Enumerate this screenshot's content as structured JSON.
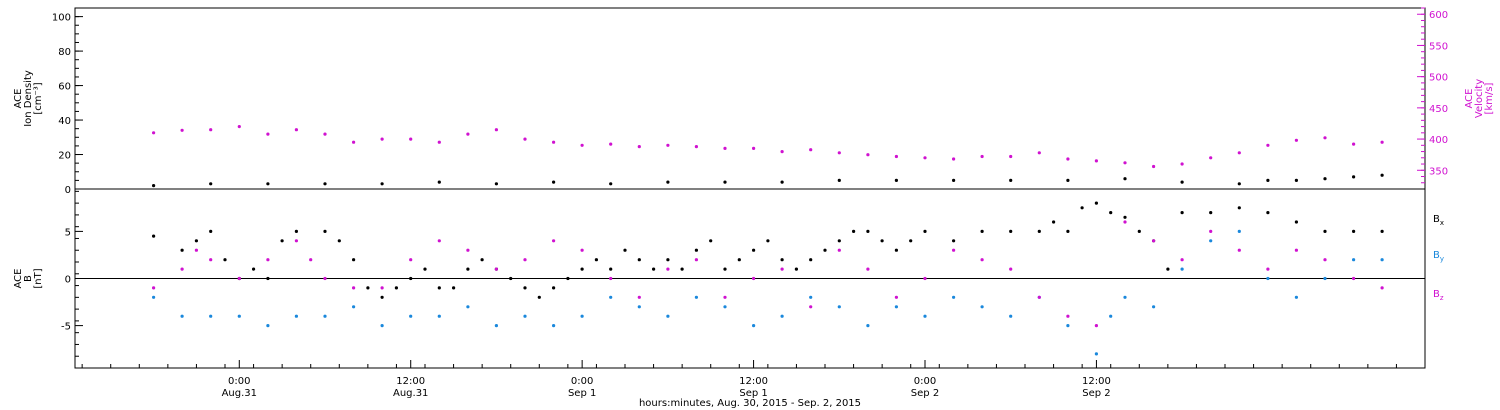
{
  "chart_data": [
    {
      "type": "scatter",
      "y_axis": {
        "label_lines": [
          "ACE",
          "Ion Density",
          "[cm⁻³]"
        ],
        "ylim": [
          0,
          105
        ],
        "ticks": [
          0,
          20,
          40,
          60,
          80,
          100
        ]
      },
      "y_axis_right": {
        "label_lines": [
          "ACE",
          "Velocity",
          "[km/s]"
        ],
        "ylim": [
          320,
          610
        ],
        "ticks": [
          350,
          400,
          450,
          500,
          550,
          600
        ],
        "color": "#d012d0"
      },
      "series": [
        {
          "name": "",
          "axis": "left",
          "color": "#000000",
          "points": [
            [
              0,
              2
            ],
            [
              4,
              3
            ],
            [
              8,
              3
            ],
            [
              12,
              3
            ],
            [
              16,
              3
            ],
            [
              20,
              4
            ],
            [
              24,
              3
            ],
            [
              28,
              4
            ],
            [
              32,
              3
            ],
            [
              36,
              4
            ],
            [
              40,
              4
            ],
            [
              44,
              4
            ],
            [
              48,
              5
            ],
            [
              52,
              5
            ],
            [
              56,
              5
            ],
            [
              60,
              5
            ],
            [
              64,
              5
            ],
            [
              68,
              6
            ],
            [
              72,
              4
            ],
            [
              76,
              3
            ],
            [
              78,
              5
            ],
            [
              80,
              5
            ],
            [
              82,
              6
            ],
            [
              84,
              7
            ],
            [
              86,
              8
            ]
          ]
        },
        {
          "name": "",
          "axis": "right",
          "color": "#d012d0",
          "points": [
            [
              0,
              410
            ],
            [
              2,
              414
            ],
            [
              4,
              415
            ],
            [
              6,
              420
            ],
            [
              8,
              408
            ],
            [
              10,
              415
            ],
            [
              12,
              408
            ],
            [
              14,
              395
            ],
            [
              16,
              400
            ],
            [
              18,
              400
            ],
            [
              20,
              395
            ],
            [
              22,
              408
            ],
            [
              24,
              415
            ],
            [
              26,
              400
            ],
            [
              28,
              395
            ],
            [
              30,
              390
            ],
            [
              32,
              392
            ],
            [
              34,
              388
            ],
            [
              36,
              390
            ],
            [
              38,
              388
            ],
            [
              40,
              385
            ],
            [
              42,
              385
            ],
            [
              44,
              380
            ],
            [
              46,
              383
            ],
            [
              48,
              378
            ],
            [
              50,
              375
            ],
            [
              52,
              372
            ],
            [
              54,
              370
            ],
            [
              56,
              368
            ],
            [
              58,
              372
            ],
            [
              60,
              372
            ],
            [
              62,
              378
            ],
            [
              64,
              368
            ],
            [
              66,
              365
            ],
            [
              68,
              362
            ],
            [
              70,
              356
            ],
            [
              72,
              360
            ],
            [
              74,
              370
            ],
            [
              76,
              378
            ],
            [
              78,
              390
            ],
            [
              80,
              398
            ],
            [
              82,
              402
            ],
            [
              84,
              392
            ],
            [
              86,
              395
            ]
          ]
        }
      ]
    },
    {
      "type": "scatter",
      "y_axis": {
        "label_lines": [
          "ACE",
          "B",
          "[nT]"
        ],
        "ylim": [
          -9.5,
          9.5
        ],
        "ticks": [
          -5,
          0,
          5
        ]
      },
      "series": [
        {
          "name": "Bx",
          "color": "#000000",
          "points": [
            [
              0,
              4.5
            ],
            [
              2,
              3
            ],
            [
              3,
              4
            ],
            [
              4,
              5
            ],
            [
              5,
              2
            ],
            [
              6,
              0
            ],
            [
              7,
              1
            ],
            [
              8,
              0
            ],
            [
              9,
              4
            ],
            [
              10,
              5
            ],
            [
              12,
              5
            ],
            [
              13,
              4
            ],
            [
              14,
              2
            ],
            [
              15,
              -1
            ],
            [
              16,
              -2
            ],
            [
              17,
              -1
            ],
            [
              18,
              0
            ],
            [
              19,
              1
            ],
            [
              20,
              -1
            ],
            [
              21,
              -1
            ],
            [
              22,
              1
            ],
            [
              23,
              2
            ],
            [
              24,
              1
            ],
            [
              25,
              0
            ],
            [
              26,
              -1
            ],
            [
              27,
              -2
            ],
            [
              28,
              -1
            ],
            [
              29,
              0
            ],
            [
              30,
              1
            ],
            [
              31,
              2
            ],
            [
              32,
              1
            ],
            [
              33,
              3
            ],
            [
              34,
              2
            ],
            [
              35,
              1
            ],
            [
              36,
              2
            ],
            [
              37,
              1
            ],
            [
              38,
              3
            ],
            [
              39,
              4
            ],
            [
              40,
              1
            ],
            [
              41,
              2
            ],
            [
              42,
              3
            ],
            [
              43,
              4
            ],
            [
              44,
              2
            ],
            [
              45,
              1
            ],
            [
              46,
              2
            ],
            [
              47,
              3
            ],
            [
              48,
              4
            ],
            [
              49,
              5
            ],
            [
              50,
              5
            ],
            [
              51,
              4
            ],
            [
              52,
              3
            ],
            [
              53,
              4
            ],
            [
              54,
              5
            ],
            [
              56,
              4
            ],
            [
              58,
              5
            ],
            [
              60,
              5
            ],
            [
              62,
              5
            ],
            [
              63,
              6
            ],
            [
              64,
              5
            ],
            [
              65,
              7.5
            ],
            [
              66,
              8
            ],
            [
              67,
              7
            ],
            [
              68,
              6.5
            ],
            [
              69,
              5
            ],
            [
              70,
              4
            ],
            [
              71,
              1
            ],
            [
              72,
              7
            ],
            [
              74,
              7
            ],
            [
              76,
              7.5
            ],
            [
              78,
              7
            ],
            [
              80,
              6
            ],
            [
              82,
              5
            ],
            [
              84,
              5
            ],
            [
              86,
              5
            ]
          ]
        },
        {
          "name": "By",
          "color": "#1a88dc",
          "points": [
            [
              0,
              -2
            ],
            [
              2,
              -4
            ],
            [
              4,
              -4
            ],
            [
              6,
              -4
            ],
            [
              8,
              -5
            ],
            [
              10,
              -4
            ],
            [
              12,
              -4
            ],
            [
              14,
              -3
            ],
            [
              16,
              -5
            ],
            [
              18,
              -4
            ],
            [
              20,
              -4
            ],
            [
              22,
              -3
            ],
            [
              24,
              -5
            ],
            [
              26,
              -4
            ],
            [
              28,
              -5
            ],
            [
              30,
              -4
            ],
            [
              32,
              -2
            ],
            [
              34,
              -3
            ],
            [
              36,
              -4
            ],
            [
              38,
              -2
            ],
            [
              40,
              -3
            ],
            [
              42,
              -5
            ],
            [
              44,
              -4
            ],
            [
              46,
              -2
            ],
            [
              48,
              -3
            ],
            [
              50,
              -5
            ],
            [
              52,
              -3
            ],
            [
              54,
              -4
            ],
            [
              56,
              -2
            ],
            [
              58,
              -3
            ],
            [
              60,
              -4
            ],
            [
              62,
              -2
            ],
            [
              64,
              -5
            ],
            [
              66,
              -8
            ],
            [
              67,
              -4
            ],
            [
              68,
              -2
            ],
            [
              70,
              -3
            ],
            [
              72,
              1
            ],
            [
              74,
              4
            ],
            [
              76,
              5
            ],
            [
              78,
              0
            ],
            [
              80,
              -2
            ],
            [
              82,
              0
            ],
            [
              84,
              2
            ],
            [
              86,
              2
            ]
          ]
        },
        {
          "name": "Bz",
          "color": "#d012d0",
          "points": [
            [
              0,
              -1
            ],
            [
              2,
              1
            ],
            [
              3,
              3
            ],
            [
              4,
              2
            ],
            [
              6,
              0
            ],
            [
              8,
              2
            ],
            [
              10,
              4
            ],
            [
              11,
              2
            ],
            [
              12,
              0
            ],
            [
              14,
              -1
            ],
            [
              16,
              -1
            ],
            [
              18,
              2
            ],
            [
              20,
              4
            ],
            [
              22,
              3
            ],
            [
              24,
              1
            ],
            [
              26,
              2
            ],
            [
              28,
              4
            ],
            [
              30,
              3
            ],
            [
              32,
              0
            ],
            [
              34,
              -2
            ],
            [
              36,
              1
            ],
            [
              38,
              2
            ],
            [
              40,
              -2
            ],
            [
              42,
              0
            ],
            [
              44,
              1
            ],
            [
              46,
              -3
            ],
            [
              48,
              3
            ],
            [
              50,
              1
            ],
            [
              52,
              -2
            ],
            [
              54,
              0
            ],
            [
              56,
              3
            ],
            [
              58,
              2
            ],
            [
              60,
              1
            ],
            [
              62,
              -2
            ],
            [
              64,
              -4
            ],
            [
              66,
              -5
            ],
            [
              68,
              6
            ],
            [
              70,
              4
            ],
            [
              72,
              2
            ],
            [
              74,
              5
            ],
            [
              76,
              3
            ],
            [
              78,
              1
            ],
            [
              80,
              3
            ],
            [
              82,
              2
            ],
            [
              84,
              0
            ],
            [
              86,
              -1
            ]
          ]
        }
      ],
      "legend": [
        {
          "label": "B",
          "sub": "x",
          "color": "#000000"
        },
        {
          "label": "B",
          "sub": "y",
          "color": "#1a88dc"
        },
        {
          "label": "B",
          "sub": "z",
          "color": "#d012d0"
        }
      ]
    }
  ],
  "x_axis": {
    "range_hours": [
      -5.5,
      89
    ],
    "ticks": [
      {
        "h": 6,
        "top": "0:00",
        "bottom": "Aug.31"
      },
      {
        "h": 18,
        "top": "12:00",
        "bottom": "Aug.31"
      },
      {
        "h": 30,
        "top": "0:00",
        "bottom": "Sep 1"
      },
      {
        "h": 42,
        "top": "12:00",
        "bottom": "Sep 1"
      },
      {
        "h": 54,
        "top": "0:00",
        "bottom": "Sep 2"
      },
      {
        "h": 66,
        "top": "12:00",
        "bottom": "Sep 2"
      }
    ],
    "label": "hours:minutes, Aug. 30, 2015 - Sep. 2, 2015"
  }
}
